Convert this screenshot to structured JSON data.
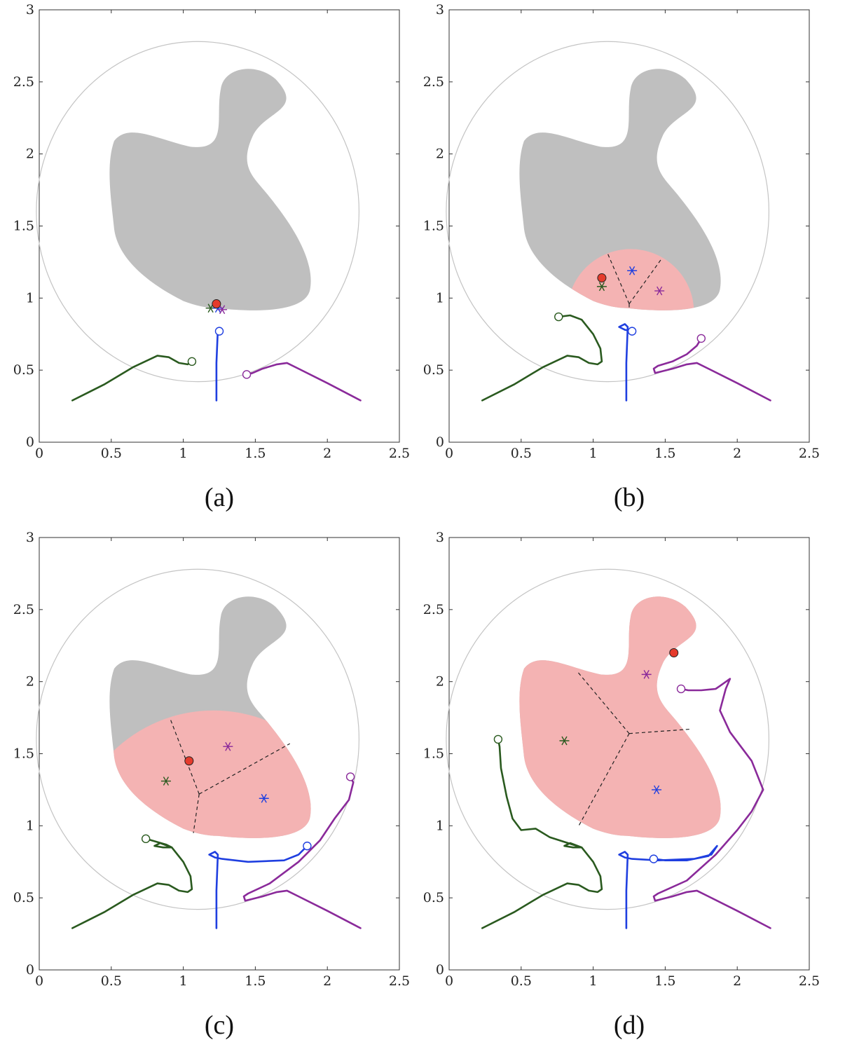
{
  "colors": {
    "green": "#2a5a1f",
    "blue": "#1f3fe0",
    "purple": "#8a2a9a",
    "red": "#e53b2c",
    "obstacle": "#bfbfbf",
    "covered": "#f4b3b3",
    "circle": "#c4c4c4",
    "frame": "#333333"
  },
  "chart_data": [
    {
      "type": "line",
      "panel": "(a)",
      "xlim": [
        0,
        2.5
      ],
      "ylim": [
        0,
        3
      ],
      "xticks": [
        "0",
        "0.5",
        "1",
        "1.5",
        "2",
        "2.5"
      ],
      "yticks": [
        "0",
        "0.5",
        "1",
        "1.5",
        "2",
        "2.5",
        "3"
      ],
      "circle": {
        "cx": 1.1,
        "cy": 1.6,
        "rx": 1.12,
        "ry": 1.18
      },
      "covered_region": "none",
      "target": [
        1.23,
        0.96
      ],
      "stars": [
        {
          "name": "green",
          "x": 1.19,
          "y": 0.93
        },
        {
          "name": "blue",
          "x": 1.24,
          "y": 0.93
        },
        {
          "name": "purple",
          "x": 1.27,
          "y": 0.92
        }
      ],
      "voronoi": [],
      "series": [
        {
          "name": "green",
          "points": [
            [
              0.23,
              0.29
            ],
            [
              0.45,
              0.4
            ],
            [
              0.65,
              0.52
            ],
            [
              0.82,
              0.6
            ],
            [
              0.9,
              0.59
            ],
            [
              0.97,
              0.55
            ],
            [
              1.03,
              0.54
            ],
            [
              1.06,
              0.56
            ]
          ]
        },
        {
          "name": "blue",
          "points": [
            [
              1.23,
              0.29
            ],
            [
              1.23,
              0.55
            ],
            [
              1.24,
              0.78
            ],
            [
              1.25,
              0.77
            ]
          ]
        },
        {
          "name": "purple",
          "points": [
            [
              2.23,
              0.29
            ],
            [
              2.0,
              0.41
            ],
            [
              1.8,
              0.51
            ],
            [
              1.72,
              0.55
            ],
            [
              1.65,
              0.54
            ],
            [
              1.55,
              0.51
            ],
            [
              1.48,
              0.48
            ],
            [
              1.44,
              0.47
            ]
          ]
        }
      ]
    },
    {
      "type": "line",
      "panel": "(b)",
      "xlim": [
        0,
        2.5
      ],
      "ylim": [
        0,
        3
      ],
      "xticks": [
        "0",
        "0.5",
        "1",
        "1.5",
        "2",
        "2.5"
      ],
      "yticks": [
        "0",
        "0.5",
        "1",
        "1.5",
        "2",
        "2.5",
        "3"
      ],
      "circle": {
        "cx": 1.1,
        "cy": 1.6,
        "rx": 1.12,
        "ry": 1.18
      },
      "covered_region": "small",
      "target": [
        1.06,
        1.14
      ],
      "stars": [
        {
          "name": "green",
          "x": 1.06,
          "y": 1.08
        },
        {
          "name": "blue",
          "x": 1.27,
          "y": 1.19
        },
        {
          "name": "purple",
          "x": 1.46,
          "y": 1.05
        }
      ],
      "voronoi": [
        [
          [
            1.25,
            0.96
          ],
          [
            1.1,
            1.31
          ]
        ],
        [
          [
            1.25,
            0.96
          ],
          [
            1.48,
            1.28
          ]
        ],
        [
          [
            1.25,
            0.96
          ],
          [
            1.25,
            0.92
          ]
        ]
      ],
      "series": [
        {
          "name": "green",
          "points": [
            [
              0.23,
              0.29
            ],
            [
              0.45,
              0.4
            ],
            [
              0.65,
              0.52
            ],
            [
              0.82,
              0.6
            ],
            [
              0.9,
              0.59
            ],
            [
              0.97,
              0.55
            ],
            [
              1.03,
              0.54
            ],
            [
              1.06,
              0.56
            ],
            [
              1.05,
              0.65
            ],
            [
              1.0,
              0.75
            ],
            [
              0.92,
              0.85
            ],
            [
              0.84,
              0.88
            ],
            [
              0.76,
              0.87
            ]
          ]
        },
        {
          "name": "blue",
          "points": [
            [
              1.23,
              0.29
            ],
            [
              1.23,
              0.55
            ],
            [
              1.24,
              0.8
            ],
            [
              1.22,
              0.82
            ],
            [
              1.18,
              0.8
            ],
            [
              1.22,
              0.78
            ],
            [
              1.27,
              0.77
            ]
          ]
        },
        {
          "name": "purple",
          "points": [
            [
              2.23,
              0.29
            ],
            [
              2.0,
              0.41
            ],
            [
              1.8,
              0.51
            ],
            [
              1.72,
              0.55
            ],
            [
              1.65,
              0.54
            ],
            [
              1.55,
              0.51
            ],
            [
              1.47,
              0.49
            ],
            [
              1.43,
              0.48
            ],
            [
              1.42,
              0.51
            ],
            [
              1.45,
              0.53
            ],
            [
              1.55,
              0.56
            ],
            [
              1.65,
              0.61
            ],
            [
              1.72,
              0.67
            ],
            [
              1.75,
              0.72
            ]
          ]
        }
      ]
    },
    {
      "type": "line",
      "panel": "(c)",
      "xlim": [
        0,
        2.5
      ],
      "ylim": [
        0,
        3
      ],
      "xticks": [
        "0",
        "0.5",
        "1",
        "1.5",
        "2",
        "2.5"
      ],
      "yticks": [
        "0",
        "0.5",
        "1",
        "1.5",
        "2",
        "2.5",
        "3"
      ],
      "circle": {
        "cx": 1.1,
        "cy": 1.6,
        "rx": 1.12,
        "ry": 1.18
      },
      "covered_region": "medium",
      "target": [
        1.04,
        1.45
      ],
      "stars": [
        {
          "name": "green",
          "x": 0.88,
          "y": 1.31
        },
        {
          "name": "purple",
          "x": 1.31,
          "y": 1.55
        },
        {
          "name": "blue",
          "x": 1.56,
          "y": 1.19
        }
      ],
      "voronoi": [
        [
          [
            1.11,
            1.22
          ],
          [
            0.91,
            1.74
          ]
        ],
        [
          [
            1.11,
            1.22
          ],
          [
            1.74,
            1.57
          ]
        ],
        [
          [
            1.11,
            1.22
          ],
          [
            1.07,
            0.95
          ]
        ]
      ],
      "series": [
        {
          "name": "green",
          "points": [
            [
              0.23,
              0.29
            ],
            [
              0.45,
              0.4
            ],
            [
              0.65,
              0.52
            ],
            [
              0.82,
              0.6
            ],
            [
              0.9,
              0.59
            ],
            [
              0.97,
              0.55
            ],
            [
              1.03,
              0.54
            ],
            [
              1.06,
              0.56
            ],
            [
              1.05,
              0.65
            ],
            [
              1.0,
              0.75
            ],
            [
              0.92,
              0.85
            ],
            [
              0.84,
              0.88
            ],
            [
              0.8,
              0.86
            ],
            [
              0.86,
              0.85
            ],
            [
              0.92,
              0.85
            ],
            [
              0.88,
              0.87
            ],
            [
              0.74,
              0.91
            ]
          ]
        },
        {
          "name": "blue",
          "points": [
            [
              1.23,
              0.29
            ],
            [
              1.23,
              0.55
            ],
            [
              1.24,
              0.8
            ],
            [
              1.22,
              0.82
            ],
            [
              1.18,
              0.8
            ],
            [
              1.22,
              0.78
            ],
            [
              1.27,
              0.77
            ],
            [
              1.45,
              0.75
            ],
            [
              1.7,
              0.76
            ],
            [
              1.8,
              0.8
            ],
            [
              1.86,
              0.86
            ]
          ]
        },
        {
          "name": "purple",
          "points": [
            [
              2.23,
              0.29
            ],
            [
              2.0,
              0.41
            ],
            [
              1.8,
              0.51
            ],
            [
              1.72,
              0.55
            ],
            [
              1.65,
              0.54
            ],
            [
              1.55,
              0.51
            ],
            [
              1.47,
              0.49
            ],
            [
              1.43,
              0.48
            ],
            [
              1.42,
              0.51
            ],
            [
              1.45,
              0.53
            ],
            [
              1.6,
              0.6
            ],
            [
              1.8,
              0.75
            ],
            [
              1.95,
              0.9
            ],
            [
              2.05,
              1.05
            ],
            [
              2.15,
              1.18
            ],
            [
              2.18,
              1.3
            ],
            [
              2.16,
              1.34
            ]
          ]
        }
      ]
    },
    {
      "type": "line",
      "panel": "(d)",
      "xlim": [
        0,
        2.5
      ],
      "ylim": [
        0,
        3
      ],
      "xticks": [
        "0",
        "0.5",
        "1",
        "1.5",
        "2",
        "2.5"
      ],
      "yticks": [
        "0",
        "0.5",
        "1",
        "1.5",
        "2",
        "2.5",
        "3"
      ],
      "circle": {
        "cx": 1.1,
        "cy": 1.6,
        "rx": 1.12,
        "ry": 1.18
      },
      "covered_region": "full",
      "target": [
        1.56,
        2.2
      ],
      "stars": [
        {
          "name": "purple",
          "x": 1.37,
          "y": 2.05
        },
        {
          "name": "green",
          "x": 0.8,
          "y": 1.59
        },
        {
          "name": "blue",
          "x": 1.44,
          "y": 1.25
        }
      ],
      "voronoi": [
        [
          [
            1.25,
            1.64
          ],
          [
            0.89,
            2.07
          ]
        ],
        [
          [
            1.25,
            1.64
          ],
          [
            1.67,
            1.67
          ]
        ],
        [
          [
            1.25,
            1.64
          ],
          [
            0.9,
            1.0
          ]
        ]
      ],
      "series": [
        {
          "name": "green",
          "points": [
            [
              0.23,
              0.29
            ],
            [
              0.45,
              0.4
            ],
            [
              0.65,
              0.52
            ],
            [
              0.82,
              0.6
            ],
            [
              0.9,
              0.59
            ],
            [
              0.97,
              0.55
            ],
            [
              1.03,
              0.54
            ],
            [
              1.06,
              0.56
            ],
            [
              1.05,
              0.65
            ],
            [
              1.0,
              0.75
            ],
            [
              0.92,
              0.85
            ],
            [
              0.84,
              0.88
            ],
            [
              0.8,
              0.86
            ],
            [
              0.86,
              0.85
            ],
            [
              0.92,
              0.85
            ],
            [
              0.7,
              0.92
            ],
            [
              0.6,
              0.98
            ],
            [
              0.5,
              0.97
            ],
            [
              0.44,
              1.05
            ],
            [
              0.4,
              1.2
            ],
            [
              0.36,
              1.4
            ],
            [
              0.35,
              1.55
            ],
            [
              0.34,
              1.6
            ]
          ]
        },
        {
          "name": "blue",
          "points": [
            [
              1.23,
              0.29
            ],
            [
              1.23,
              0.55
            ],
            [
              1.24,
              0.8
            ],
            [
              1.22,
              0.82
            ],
            [
              1.18,
              0.8
            ],
            [
              1.22,
              0.78
            ],
            [
              1.27,
              0.77
            ],
            [
              1.45,
              0.76
            ],
            [
              1.7,
              0.77
            ],
            [
              1.82,
              0.8
            ],
            [
              1.86,
              0.86
            ],
            [
              1.8,
              0.79
            ],
            [
              1.65,
              0.76
            ],
            [
              1.5,
              0.76
            ],
            [
              1.42,
              0.77
            ]
          ]
        },
        {
          "name": "purple",
          "points": [
            [
              2.23,
              0.29
            ],
            [
              2.0,
              0.41
            ],
            [
              1.8,
              0.51
            ],
            [
              1.72,
              0.55
            ],
            [
              1.65,
              0.54
            ],
            [
              1.55,
              0.51
            ],
            [
              1.47,
              0.49
            ],
            [
              1.43,
              0.48
            ],
            [
              1.42,
              0.51
            ],
            [
              1.45,
              0.53
            ],
            [
              1.65,
              0.62
            ],
            [
              1.85,
              0.8
            ],
            [
              2.0,
              0.97
            ],
            [
              2.1,
              1.1
            ],
            [
              2.18,
              1.25
            ],
            [
              2.1,
              1.45
            ],
            [
              1.95,
              1.65
            ],
            [
              1.88,
              1.8
            ],
            [
              1.92,
              1.95
            ],
            [
              1.95,
              2.02
            ],
            [
              1.88,
              1.97
            ],
            [
              1.85,
              1.95
            ],
            [
              1.75,
              1.94
            ],
            [
              1.66,
              1.94
            ],
            [
              1.61,
              1.95
            ]
          ]
        }
      ]
    }
  ]
}
